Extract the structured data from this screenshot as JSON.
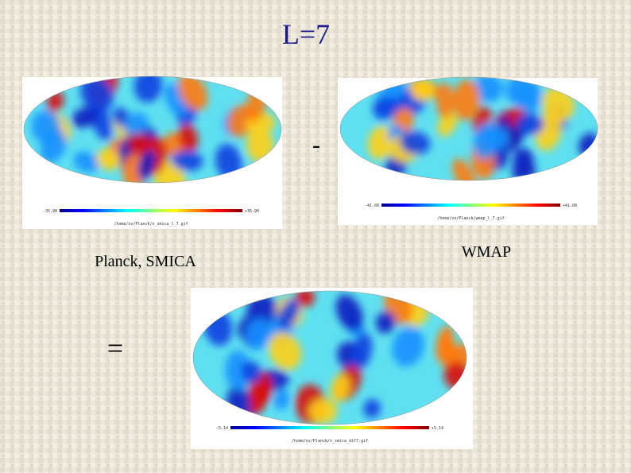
{
  "title": "L=7",
  "minus_sign": "-",
  "equals_sign": "=",
  "maps": [
    {
      "caption": "Planck, SMICA",
      "colorbar_min": "-35.90",
      "colorbar_max": "+35.90",
      "file": "/home/ov/Planck/n_smica_l_7.gif"
    },
    {
      "caption": "WMAP",
      "colorbar_min": "-41.08",
      "colorbar_max": "+41.08",
      "file": "/home/ov/Planck/wmap_l_7.gif"
    },
    {
      "colorbar_min": "-5.14",
      "colorbar_max": "+5.14",
      "file": "/home/ov/Planck/n_smica_dif7.gif"
    }
  ]
}
